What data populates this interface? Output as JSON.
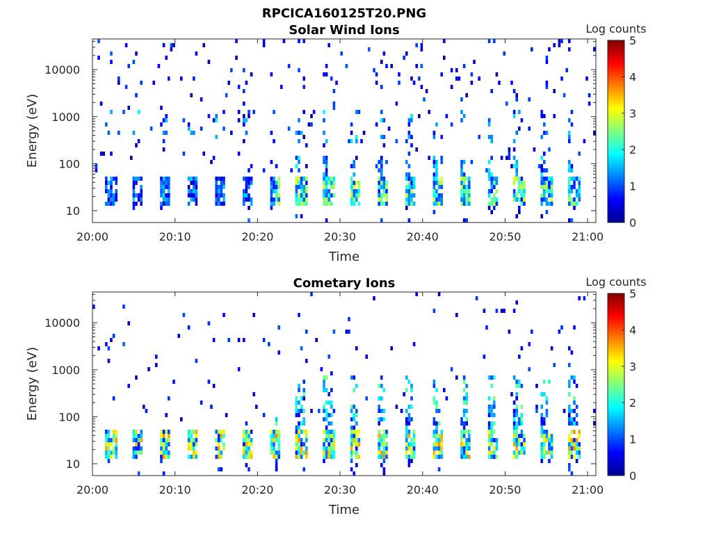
{
  "figure": {
    "title": "RPCICA160125T20.PNG"
  },
  "chart_data": [
    {
      "type": "heatmap",
      "title": "Solar Wind Ions",
      "xlabel": "Time",
      "ylabel": "Energy (eV)",
      "x_ticks": [
        "20:00",
        "20:10",
        "20:20",
        "20:30",
        "20:40",
        "20:50",
        "21:00"
      ],
      "x_range_minutes": [
        0,
        61
      ],
      "y_scale": "log",
      "y_ticks": [
        "10",
        "100",
        "1000",
        "10000"
      ],
      "y_range": [
        5.6,
        45000
      ],
      "colorbar": {
        "label": "Log counts",
        "range": [
          0,
          5
        ],
        "ticks": [
          "0",
          "1",
          "2",
          "3",
          "4",
          "5"
        ],
        "colormap": "jet"
      },
      "description_values": {
        "scan_period_min": 3.3,
        "low_energy_band_eV": [
          17,
          45
        ],
        "peak_log_counts_approx": 2.5
      }
    },
    {
      "type": "heatmap",
      "title": "Cometary Ions",
      "xlabel": "Time",
      "ylabel": "Energy (eV)",
      "x_ticks": [
        "20:00",
        "20:10",
        "20:20",
        "20:30",
        "20:40",
        "20:50",
        "21:00"
      ],
      "x_range_minutes": [
        0,
        61
      ],
      "y_scale": "log",
      "y_ticks": [
        "10",
        "100",
        "1000",
        "10000"
      ],
      "y_range": [
        5.6,
        45000
      ],
      "colorbar": {
        "label": "Log counts",
        "range": [
          0,
          5
        ],
        "ticks": [
          "0",
          "1",
          "2",
          "3",
          "4",
          "5"
        ],
        "colormap": "jet"
      },
      "description_values": {
        "scan_period_min": 3.3,
        "low_energy_band_eV": [
          17,
          45
        ],
        "peak_log_counts_approx": 3.2
      }
    }
  ]
}
